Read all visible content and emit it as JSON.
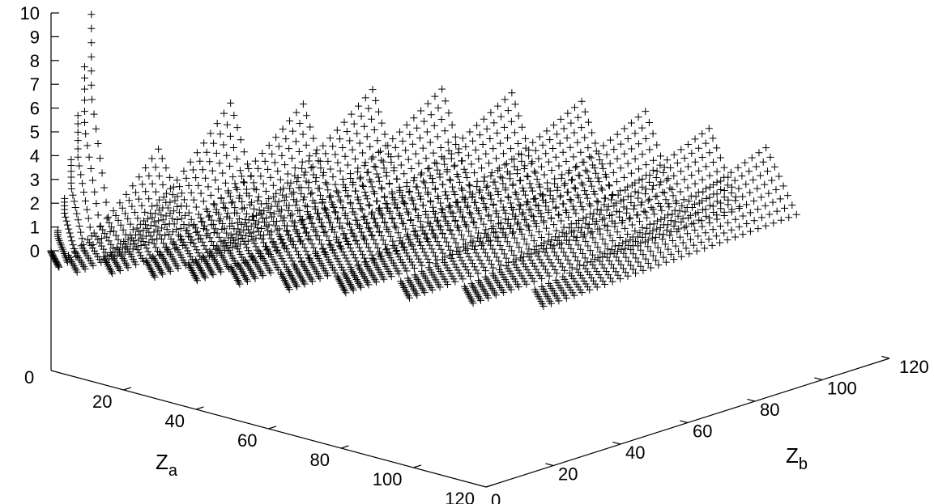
{
  "chart_data": {
    "type": "scatter",
    "title": "",
    "xlabel": "Z",
    "xlabel_sub": "a",
    "ylabel": "Z",
    "ylabel_sub": "b",
    "zlabel": "",
    "xlim": [
      0,
      120
    ],
    "ylim": [
      0,
      120
    ],
    "zlim": [
      0,
      10
    ],
    "x_ticks": [
      20,
      40,
      60,
      80,
      100,
      120
    ],
    "y_ticks": [
      0,
      20,
      40,
      60,
      80,
      100,
      120
    ],
    "z_ticks": [
      0,
      1,
      2,
      3,
      4,
      5,
      6,
      7,
      8,
      9,
      10
    ],
    "base_label": "0",
    "marker": "+",
    "grid": false,
    "legend": "none",
    "series": [
      {
        "za": 1,
        "zb_start": 0,
        "zb_end": 12,
        "z_max": 9.4
      },
      {
        "za": 6,
        "zb_start": 0,
        "zb_end": 30,
        "z_max": 3.0
      },
      {
        "za": 12,
        "zb_start": 4,
        "zb_end": 45,
        "z_max": 4.5
      },
      {
        "za": 20,
        "zb_start": 8,
        "zb_end": 58,
        "z_max": 4.2
      },
      {
        "za": 28,
        "zb_start": 12,
        "zb_end": 70,
        "z_max": 4.6
      },
      {
        "za": 36,
        "zb_start": 16,
        "zb_end": 82,
        "z_max": 4.4
      },
      {
        "za": 46,
        "zb_start": 20,
        "zb_end": 92,
        "z_max": 4.2
      },
      {
        "za": 56,
        "zb_start": 26,
        "zb_end": 102,
        "z_max": 3.8
      },
      {
        "za": 68,
        "zb_start": 32,
        "zb_end": 108,
        "z_max": 3.6
      },
      {
        "za": 80,
        "zb_start": 38,
        "zb_end": 114,
        "z_max": 3.1
      },
      {
        "za": 92,
        "zb_start": 46,
        "zb_end": 118,
        "z_max": 2.6
      }
    ]
  }
}
